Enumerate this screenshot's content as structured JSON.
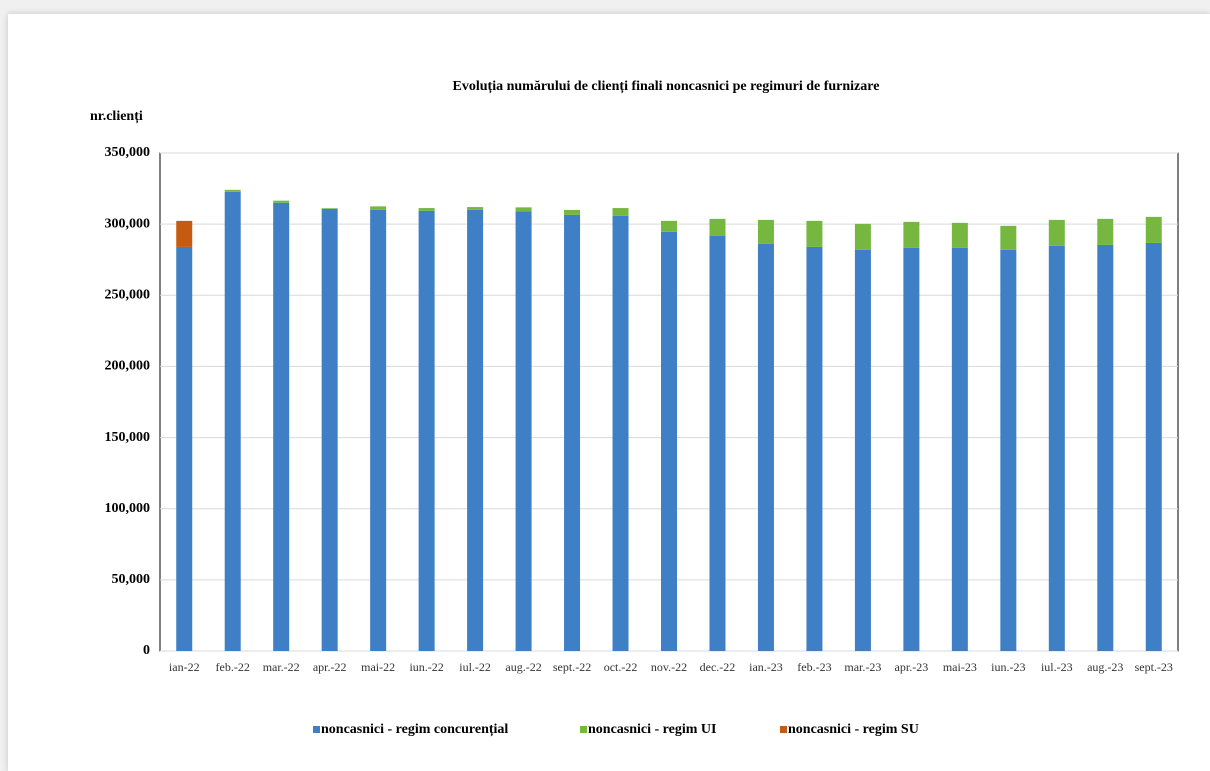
{
  "chart_data": {
    "type": "stacked_bar",
    "title": "Evoluția numărului de clienți finali noncasnici pe regimuri de furnizare",
    "y_label": "nr.clienți",
    "categories": [
      "ian-22",
      "feb.-22",
      "mar.-22",
      "apr.-22",
      "mai-22",
      "iun.-22",
      "iul.-22",
      "aug.-22",
      "sept.-22",
      "oct.-22",
      "nov.-22",
      "dec.-22",
      "ian.-23",
      "feb.-23",
      "mar.-23",
      "apr.-23",
      "mai-23",
      "iun.-23",
      "iul.-23",
      "aug.-23",
      "sept.-23"
    ],
    "series": [
      {
        "name": "noncasnici - regim concurențial",
        "color": "#3f7fc6",
        "values": [
          284000,
          322700,
          315000,
          310700,
          310000,
          309300,
          310000,
          309000,
          306500,
          305800,
          294600,
          291700,
          286100,
          284000,
          281900,
          283300,
          283300,
          281900,
          284700,
          285400,
          286800
        ]
      },
      {
        "name": "noncasnici - regim UI",
        "color": "#76b83f",
        "values": [
          0,
          1400,
          1500,
          500,
          2500,
          2000,
          2000,
          2800,
          3500,
          5500,
          7700,
          12000,
          16900,
          18300,
          18300,
          18300,
          17600,
          16900,
          18300,
          18300,
          18300
        ]
      },
      {
        "name": "noncasnici - regim SU",
        "color": "#c55a11",
        "values": [
          18300,
          0,
          0,
          0,
          0,
          0,
          0,
          0,
          0,
          0,
          0,
          0,
          0,
          0,
          0,
          0,
          0,
          0,
          0,
          0,
          0
        ]
      }
    ],
    "ylim": [
      0,
      350000
    ],
    "yticks": [
      0,
      {
        "value": 50000,
        "label": "50,000"
      },
      {
        "value": 100000,
        "label": "100,000"
      },
      {
        "value": 150000,
        "label": "150,000"
      },
      {
        "value": 200000,
        "label": "200,000"
      },
      {
        "value": 250000,
        "label": "250,000"
      },
      {
        "value": 300000,
        "label": "300,000"
      },
      {
        "value": 350000,
        "label": "350,000"
      }
    ],
    "grid": true,
    "legend": "bottom"
  }
}
